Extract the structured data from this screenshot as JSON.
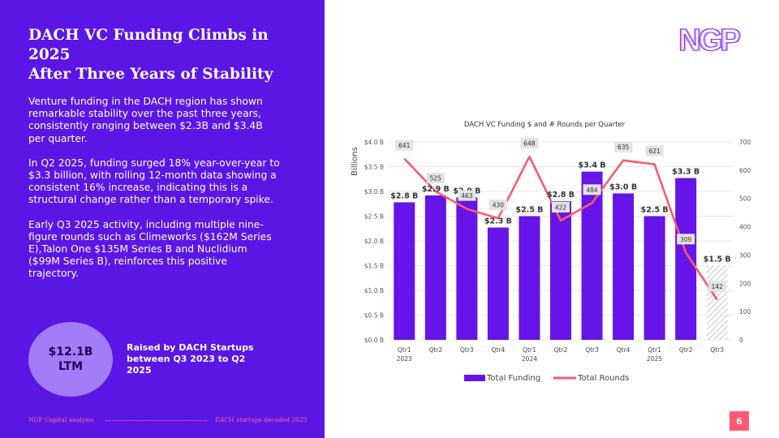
{
  "slide": {
    "title_line1": "DACH VC Funding Climbs in 2025",
    "title_line2": "After Three Years of Stability",
    "paragraphs": [
      "Venture funding in the DACH region has shown remarkable stability over the past three years, consistently ranging between $2.3B and $3.4B per quarter.",
      "In Q2 2025, funding surged 18% year-over-year to $3.3 billion, with rolling 12-month data showing a consistent 16% increase, indicating this is a structural change rather than a temporary spike.",
      "Early Q3 2025 activity, including multiple nine-figure rounds such as Climeworks ($162M Series E),Talon One $135M Series B and Nuclidium ($99M Series B), reinforces this positive trajectory."
    ],
    "highlight_value": "$12.1B",
    "highlight_sub": "LTM",
    "highlight_caption": "Raised by DACH Startups between Q3 2023 to Q2 2025",
    "footer_left": "NGP Capital analysis",
    "footer_right": "DACH startups decoded 2025",
    "page_number": "6",
    "logo_text": "NGP",
    "colors": {
      "left_panel": "#5b16e6",
      "bar": "#6614e8",
      "line": "#fa5c6b",
      "accent": "#ff5a72"
    }
  },
  "chart_data": {
    "type": "bar",
    "title": "DACH VC Funding $ and # Rounds per Quarter",
    "ylabel": "Billions",
    "ylim": [
      0,
      4.0
    ],
    "y2lim": [
      0,
      700
    ],
    "y_ticks": [
      "$0.0 B",
      "$0.5 B",
      "$1.0 B",
      "$1.5 B",
      "$2.0 B",
      "$2.5 B",
      "$3.0 B",
      "$3.5 B",
      "$4.0 B"
    ],
    "y2_ticks": [
      "0",
      "100",
      "200",
      "300",
      "400",
      "500",
      "600",
      "700"
    ],
    "categories": [
      "Qtr1",
      "Qtr2",
      "Qtr3",
      "Qtr4",
      "Qtr1",
      "Qtr2",
      "Qtr3",
      "Qtr4",
      "Qtr1",
      "Qtr2",
      "Qtr3"
    ],
    "year_labels": [
      "2023",
      "",
      "",
      "",
      "2024",
      "",
      "",
      "",
      "2025",
      "",
      ""
    ],
    "series": [
      {
        "name": "Total Funding",
        "type": "bar",
        "values": [
          2.78,
          2.92,
          2.88,
          2.27,
          2.5,
          2.8,
          3.4,
          2.96,
          2.5,
          3.27,
          1.5
        ],
        "labels": [
          "$2.8 B",
          "$2.9 B",
          "$2.9 B",
          "$2.3 B",
          "$2.5 B",
          "$2.8 B",
          "$3.4 B",
          "$3.0 B",
          "$2.5 B",
          "$3.3 B",
          "$1.5 B"
        ]
      },
      {
        "name": "Total Rounds",
        "type": "line",
        "values": [
          641,
          525,
          463,
          430,
          648,
          422,
          484,
          635,
          621,
          309,
          142
        ]
      }
    ],
    "legend": [
      "Total Funding",
      "Total Rounds"
    ]
  }
}
